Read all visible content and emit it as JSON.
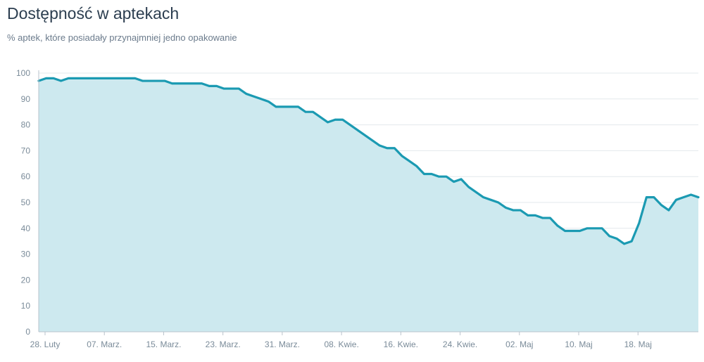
{
  "title": "Dostępność w aptekach",
  "subtitle": "% aptek, które posiadały przynajmniej jedno opakowanie",
  "colors": {
    "line": "#1b9ab2",
    "fill": "#cde9ef",
    "grid": "#e3e8ec",
    "axis": "#b9c3cc"
  },
  "chart_data": {
    "type": "area",
    "title": "Dostępność w aptekach",
    "subtitle": "% aptek, które posiadały przynajmniej jedno opakowanie",
    "xlabel": "",
    "ylabel": "",
    "ylim": [
      0,
      100
    ],
    "yticks": [
      0,
      10,
      20,
      30,
      40,
      50,
      60,
      70,
      80,
      90,
      100
    ],
    "x_tick_labels": [
      "28. Luty",
      "07. Marz.",
      "15. Marz.",
      "23. Marz.",
      "31. Marz.",
      "08. Kwie.",
      "16. Kwie.",
      "24. Kwie.",
      "02. Maj",
      "10. Maj",
      "18. Maj"
    ],
    "grid": true,
    "series": [
      {
        "values": [
          97,
          98,
          98,
          97,
          98,
          98,
          98,
          98,
          98,
          98,
          98,
          98,
          98,
          98,
          97,
          97,
          97,
          97,
          96,
          96,
          96,
          96,
          96,
          95,
          95,
          94,
          94,
          94,
          92,
          91,
          90,
          89,
          87,
          87,
          87,
          87,
          85,
          85,
          83,
          81,
          82,
          82,
          80,
          78,
          76,
          74,
          72,
          71,
          71,
          68,
          66,
          64,
          61,
          61,
          60,
          60,
          58,
          59,
          56,
          54,
          52,
          51,
          50,
          48,
          47,
          47,
          45,
          45,
          44,
          44,
          41,
          39,
          39,
          39,
          40,
          40,
          40,
          37,
          36,
          34,
          35,
          42,
          52,
          52,
          49,
          47,
          51,
          52,
          53,
          52
        ]
      }
    ]
  }
}
